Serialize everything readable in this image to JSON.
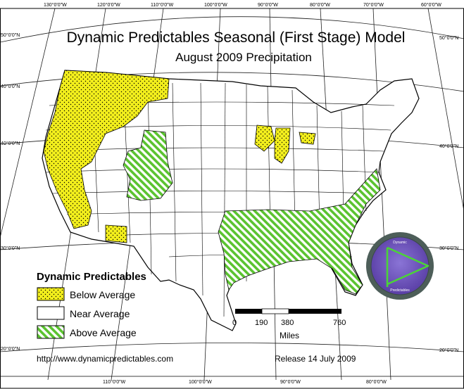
{
  "map": {
    "title": "Dynamic Predictables Seasonal (First Stage) Model",
    "subtitle": "August 2009 Precipitation",
    "top_longitudes": [
      "130°0'0\"W",
      "120°0'0\"W",
      "110°0'0\"W",
      "100°0'0\"W",
      "90°0'0\"W",
      "80°0'0\"W",
      "70°0'0\"W",
      "60°0'0\"W"
    ],
    "bottom_longitudes": [
      "110°0'0\"W",
      "100°0'0\"W",
      "90°0'0\"W",
      "80°0'0\"W"
    ],
    "left_latitudes": [
      "50°0'0\"N",
      "40°0'0\"N",
      "40°0'0\"N",
      "30°0'0\"N",
      "20°0'0\"N"
    ],
    "right_latitudes": [
      "50°0'0\"N",
      "40°0'0\"N",
      "30°0'0\"N",
      "20°0'0\"N"
    ],
    "colors": {
      "below_average": "#f2ee1c",
      "above_average": "#5bc330",
      "outline": "#000000",
      "logo_ring": "#4d5e59",
      "logo_inner": "#6a4fb3"
    }
  },
  "legend": {
    "title": "Dynamic Predictables",
    "items": [
      {
        "label": "Below Average",
        "pattern": "dots-yellow"
      },
      {
        "label": "Near Average",
        "pattern": "white"
      },
      {
        "label": "Above Average",
        "pattern": "hatch-green"
      }
    ]
  },
  "scale_bar": {
    "ticks": [
      "0",
      "190",
      "380",
      "760"
    ],
    "unit": "Miles"
  },
  "footer": {
    "url": "http://www.dynamicpredictables.com",
    "release": "Release 14 July 2009"
  },
  "logo": {
    "top_text": "Dynamic",
    "bottom_text": "Predictables",
    "icon": "play-triangle-icon"
  }
}
